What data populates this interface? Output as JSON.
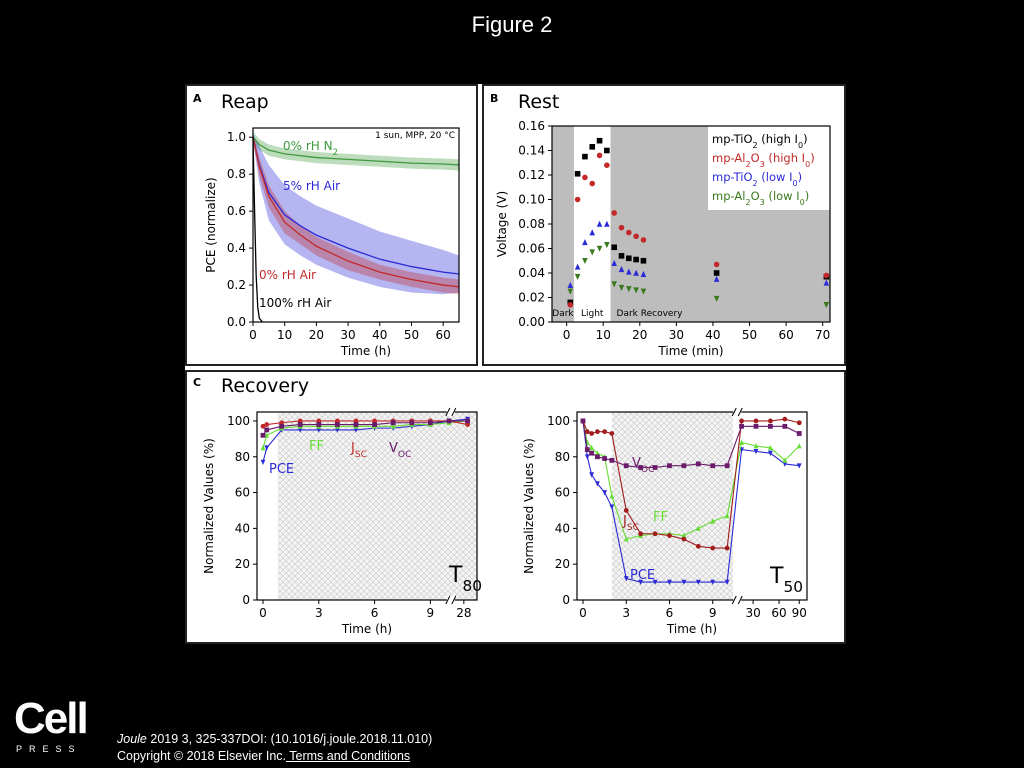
{
  "slide": {
    "title": "Figure 2"
  },
  "footer": {
    "journal": "Joule",
    "citation": " 2019 3, 325-337DOI: (10.1016/j.joule.2018.11.010)",
    "copyright": "Copyright © 2018 Elsevier Inc.",
    "terms_link": " Terms and Conditions"
  },
  "logo": {
    "word": "Cell",
    "press": "PRESS"
  },
  "colors": {
    "green": "#3f9a3f",
    "blue": "#2a2ad6",
    "red": "#c22a2a",
    "black": "#000000",
    "lightgreen": "#66dd33",
    "purple": "#6a1b6a",
    "darkred": "#a11d1d",
    "grey": "#bbbbbb"
  },
  "chart_data": [
    {
      "panel": "A",
      "type": "line",
      "title": "Reap",
      "annotation": "1 sun, MPP, 20 °C",
      "xlabel": "Time (h)",
      "ylabel": "PCE (normalize)",
      "xlim": [
        0,
        65
      ],
      "ylim": [
        0,
        1.05
      ],
      "xticks": [
        0,
        10,
        20,
        30,
        40,
        50,
        60
      ],
      "yticks": [
        "0.0",
        "0.2",
        "0.4",
        "0.6",
        "0.8",
        "1.0"
      ],
      "series": [
        {
          "name": "0% rH N",
          "sub": "2",
          "color": "#3f9a3f",
          "x": [
            0,
            2,
            5,
            10,
            20,
            30,
            40,
            50,
            60,
            65
          ],
          "y": [
            1.0,
            0.96,
            0.93,
            0.91,
            0.89,
            0.88,
            0.87,
            0.86,
            0.855,
            0.85
          ],
          "band": [
            0.03,
            0.03,
            0.03,
            0.03,
            0.03,
            0.03,
            0.03,
            0.03,
            0.03,
            0.03
          ]
        },
        {
          "name": "5% rH Air",
          "sub": "",
          "color": "#2a2ad6",
          "x": [
            0,
            2,
            5,
            10,
            15,
            20,
            30,
            40,
            50,
            60,
            65
          ],
          "y": [
            1.0,
            0.85,
            0.7,
            0.58,
            0.52,
            0.47,
            0.4,
            0.34,
            0.3,
            0.27,
            0.26
          ],
          "band": [
            0.02,
            0.1,
            0.15,
            0.16,
            0.16,
            0.16,
            0.16,
            0.15,
            0.14,
            0.12,
            0.1
          ]
        },
        {
          "name": "0% rH Air",
          "sub": "",
          "color": "#c22a2a",
          "x": [
            0,
            2,
            5,
            10,
            15,
            20,
            30,
            40,
            50,
            60,
            65
          ],
          "y": [
            1.0,
            0.84,
            0.68,
            0.54,
            0.47,
            0.41,
            0.33,
            0.27,
            0.23,
            0.2,
            0.19
          ],
          "band": [
            0.02,
            0.05,
            0.06,
            0.06,
            0.05,
            0.05,
            0.05,
            0.04,
            0.04,
            0.04,
            0.04
          ]
        },
        {
          "name": "100% rH Air",
          "sub": "",
          "color": "#000000",
          "x": [
            0,
            0.5,
            1,
            1.5,
            2,
            3
          ],
          "y": [
            1.0,
            0.6,
            0.25,
            0.08,
            0.02,
            0.0
          ],
          "band": []
        }
      ]
    },
    {
      "panel": "B",
      "type": "scatter",
      "title": "Rest",
      "xlabel": "Time (min)",
      "ylabel": "Voltage (V)",
      "xlim": [
        -4,
        72
      ],
      "ylim": [
        0,
        0.16
      ],
      "xticks": [
        0,
        10,
        20,
        30,
        40,
        50,
        60,
        70
      ],
      "yticks": [
        "0.00",
        "0.02",
        "0.04",
        "0.06",
        "0.08",
        "0.10",
        "0.12",
        "0.14",
        "0.16"
      ],
      "regions": [
        {
          "label": "Dark",
          "x0": -4,
          "x1": 2,
          "shade": true
        },
        {
          "label": "Light",
          "x0": 2,
          "x1": 12,
          "shade": false
        },
        {
          "label": "Dark Recovery",
          "x0": 12,
          "x1": 72,
          "shade": true
        }
      ],
      "series": [
        {
          "name": "mp-TiO",
          "sub": "2",
          "suffix": "  (high I",
          "sub2": "0",
          "end": ")",
          "color": "#000000",
          "marker": "square",
          "x": [
            1,
            3,
            5,
            7,
            9,
            11,
            13,
            15,
            17,
            19,
            21,
            41,
            71
          ],
          "y": [
            0.016,
            0.121,
            0.135,
            0.143,
            0.148,
            0.14,
            0.061,
            0.054,
            0.052,
            0.051,
            0.05,
            0.04,
            0.037
          ]
        },
        {
          "name": "mp-Al",
          "sub": "2",
          "suffix": "O",
          "sub2": "3",
          "end": " (high I0)",
          "color": "#c22a2a",
          "marker": "circle",
          "x": [
            1,
            3,
            5,
            7,
            9,
            11,
            13,
            15,
            17,
            19,
            21,
            41,
            71
          ],
          "y": [
            0.014,
            0.1,
            0.118,
            0.113,
            0.136,
            0.128,
            0.089,
            0.077,
            0.073,
            0.07,
            0.067,
            0.047,
            0.038
          ]
        },
        {
          "name": "mp-TiO",
          "sub": "2",
          "suffix": "  (low I",
          "sub2": "0",
          "end": ")",
          "color": "#2a2ad6",
          "marker": "triangle-up",
          "x": [
            1,
            3,
            5,
            7,
            9,
            11,
            13,
            15,
            17,
            19,
            21,
            41,
            71
          ],
          "y": [
            0.03,
            0.045,
            0.065,
            0.073,
            0.08,
            0.08,
            0.048,
            0.043,
            0.041,
            0.04,
            0.039,
            0.035,
            0.032
          ]
        },
        {
          "name": "mp-Al",
          "sub": "2",
          "suffix": "O",
          "sub2": "3",
          "end": "  (low I0)",
          "color": "#3a7a1f",
          "marker": "triangle-down",
          "x": [
            1,
            3,
            5,
            7,
            9,
            11,
            13,
            15,
            17,
            19,
            21,
            41,
            71
          ],
          "y": [
            0.025,
            0.037,
            0.05,
            0.057,
            0.06,
            0.063,
            0.031,
            0.028,
            0.027,
            0.026,
            0.025,
            0.019,
            0.014
          ]
        }
      ],
      "legend_labels": [
        "mp-TiO2 (high I0)",
        "mp-Al2O3 (high I0)",
        "mp-TiO2 (low I0)",
        "mp-Al2O3 (low I0)"
      ]
    },
    {
      "panel": "C",
      "title": "Recovery",
      "subplots": [
        {
          "type": "line",
          "label": "T",
          "label_sub": "80",
          "xlabel": "Time (h)",
          "ylabel": "Normalized Values (%)",
          "ylim": [
            0,
            105
          ],
          "yticks": [
            "0",
            "20",
            "40",
            "60",
            "80",
            "100"
          ],
          "xticks": [
            "0",
            "3",
            "6",
            "9",
            "28"
          ],
          "series": [
            {
              "name": "PCE",
              "color": "#2a2ad6",
              "marker": "triangle-down",
              "x": [
                0,
                0.2,
                1,
                2,
                3,
                4,
                5,
                6,
                7,
                8,
                9,
                10,
                11
              ],
              "y": [
                77,
                85,
                95,
                95,
                95,
                95,
                95,
                96,
                96,
                97,
                98,
                100,
                101
              ]
            },
            {
              "name": "FF",
              "color": "#66dd33",
              "marker": "triangle-up",
              "x": [
                0,
                0.2,
                1,
                2,
                3,
                4,
                5,
                6,
                7,
                8,
                9,
                10,
                11
              ],
              "y": [
                85,
                92,
                96,
                97,
                97,
                97,
                97,
                97,
                97,
                98,
                98,
                99,
                100
              ]
            },
            {
              "name": "J",
              "sub": "SC",
              "color": "#c22a2a",
              "marker": "circle",
              "x": [
                0,
                0.2,
                1,
                2,
                3,
                4,
                5,
                6,
                7,
                8,
                9,
                10,
                11
              ],
              "y": [
                97,
                98,
                99,
                100,
                100,
                100,
                100,
                100,
                100,
                100,
                100,
                100,
                98
              ]
            },
            {
              "name": "V",
              "sub": "OC",
              "color": "#6a1b6a",
              "marker": "square",
              "x": [
                0,
                0.2,
                1,
                2,
                3,
                4,
                5,
                6,
                7,
                8,
                9,
                10,
                11
              ],
              "y": [
                92,
                95,
                97,
                98,
                98,
                98,
                98,
                98,
                99,
                99,
                99,
                100,
                100
              ]
            }
          ]
        },
        {
          "type": "line",
          "label": "T",
          "label_sub": "50",
          "xlabel": "Time (h)",
          "ylabel": "Normalized Values (%)",
          "ylim": [
            0,
            105
          ],
          "yticks": [
            "0",
            "20",
            "40",
            "60",
            "80",
            "100"
          ],
          "xticks": [
            "0",
            "3",
            "6",
            "9",
            "30",
            "60",
            "90"
          ],
          "series": [
            {
              "name": "PCE",
              "color": "#2a2ad6",
              "marker": "triangle-down",
              "x": [
                0,
                0.3,
                0.6,
                1,
                1.5,
                2,
                3,
                4,
                5,
                6,
                7,
                8,
                9,
                10,
                11,
                12,
                13,
                14,
                15
              ],
              "y": [
                100,
                80,
                70,
                65,
                60,
                52,
                12,
                10,
                10,
                10,
                10,
                10,
                10,
                10,
                84,
                83,
                82,
                76,
                75
              ]
            },
            {
              "name": "FF",
              "color": "#66dd33",
              "marker": "triangle-up",
              "x": [
                0,
                0.3,
                0.6,
                1,
                1.5,
                2,
                3,
                4,
                5,
                6,
                7,
                8,
                9,
                10,
                11,
                12,
                13,
                14,
                15
              ],
              "y": [
                100,
                88,
                85,
                82,
                80,
                58,
                34,
                36,
                37,
                37,
                36,
                40,
                44,
                47,
                88,
                86,
                85,
                78,
                86
              ]
            },
            {
              "name": "J",
              "sub": "SC",
              "color": "#a11d1d",
              "marker": "circle",
              "x": [
                0,
                0.3,
                0.6,
                1,
                1.5,
                2,
                3,
                4,
                5,
                6,
                7,
                8,
                9,
                10,
                11,
                12,
                13,
                14,
                15
              ],
              "y": [
                100,
                94,
                93,
                94,
                94,
                93,
                50,
                37,
                37,
                36,
                34,
                30,
                29,
                29,
                100,
                100,
                100,
                101,
                99
              ]
            },
            {
              "name": "V",
              "sub": "OC",
              "color": "#6a1b6a",
              "marker": "square",
              "x": [
                0,
                0.3,
                0.6,
                1,
                1.5,
                2,
                3,
                4,
                5,
                6,
                7,
                8,
                9,
                10,
                11,
                12,
                13,
                14,
                15
              ],
              "y": [
                100,
                84,
                82,
                80,
                79,
                78,
                75,
                74,
                74,
                75,
                75,
                76,
                75,
                75,
                97,
                97,
                97,
                97,
                93
              ]
            }
          ]
        }
      ]
    }
  ]
}
